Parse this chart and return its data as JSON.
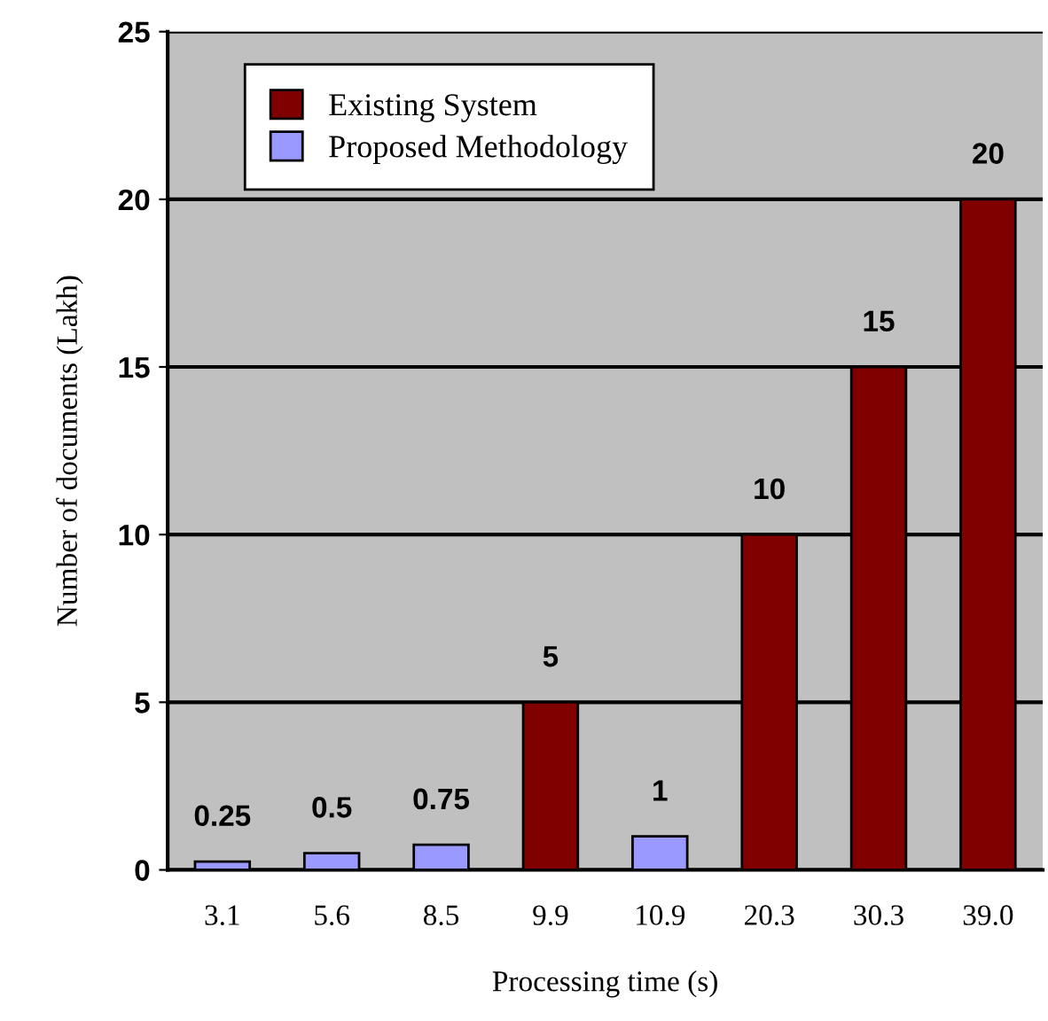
{
  "chart_data": {
    "type": "bar",
    "xlabel": "Processing time (s)",
    "ylabel": "Number of documents (Lakh)",
    "categories": [
      "3.1",
      "5.6",
      "8.5",
      "9.9",
      "10.9",
      "20.3",
      "30.3",
      "39.0"
    ],
    "series": [
      {
        "name": "Existing System",
        "color": "#800000",
        "values": [
          null,
          null,
          null,
          5,
          null,
          10,
          15,
          20
        ]
      },
      {
        "name": "Proposed Methodology",
        "color": "#9999ff",
        "values": [
          0.25,
          0.5,
          0.75,
          null,
          1,
          null,
          null,
          null
        ]
      }
    ],
    "ylim": [
      0,
      25
    ],
    "yticks": [
      0,
      5,
      10,
      15,
      20,
      25
    ],
    "grid": "y",
    "legend": "top left",
    "data_labels": true
  }
}
